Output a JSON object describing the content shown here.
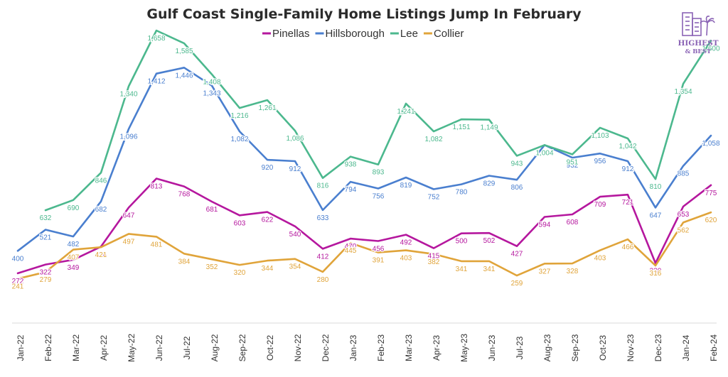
{
  "chart_data": {
    "type": "line",
    "title": "Gulf Coast Single-Family Home Listings Jump In February",
    "xlabel": "",
    "ylabel": "",
    "ylim": [
      0,
      1800
    ],
    "grid": false,
    "legend": "top-center",
    "categories": [
      "Jan-22",
      "Feb-22",
      "Mar-22",
      "Apr-22",
      "May-22",
      "Jun-22",
      "Jul-22",
      "Aug-22",
      "Sep-22",
      "Oct-22",
      "Nov-22",
      "Dec-22",
      "Jan-23",
      "Feb-23",
      "Mar-23",
      "Apr-23",
      "May-23",
      "Jun-23",
      "Jul-23",
      "Aug-23",
      "Sep-23",
      "Oct-23",
      "Nov-23",
      "Dec-23",
      "Jan-24",
      "Feb-24"
    ],
    "series": [
      {
        "name": "Pinellas",
        "color": "#b5179e",
        "values": [
          272,
          322,
          349,
          424,
          647,
          813,
          768,
          681,
          603,
          622,
          540,
          412,
          470,
          456,
          492,
          415,
          500,
          502,
          427,
          594,
          608,
          709,
          721,
          330,
          653,
          775
        ],
        "labels": [
          "272",
          "322",
          "349",
          "424",
          "647",
          "813",
          "768",
          "681",
          "603",
          "622",
          "540",
          "412",
          "470",
          "456",
          "492",
          "415",
          "500",
          "502",
          "427",
          "594",
          "608",
          "709",
          "721",
          "330",
          "653",
          "775"
        ]
      },
      {
        "name": "Hillsborough",
        "color": "#4a7fcf",
        "values": [
          400,
          521,
          482,
          682,
          1096,
          1412,
          1446,
          1343,
          1082,
          920,
          912,
          633,
          794,
          756,
          819,
          752,
          780,
          829,
          806,
          1004,
          932,
          956,
          912,
          647,
          885,
          1058
        ],
        "labels": [
          "400",
          "521",
          "482",
          "682",
          "1,096",
          "1,412",
          "1,446",
          "1,343",
          "1,082",
          "920",
          "912",
          "633",
          "794",
          "756",
          "819",
          "752",
          "780",
          "829",
          "806",
          "1,004",
          "932",
          "956",
          "912",
          "647",
          "885",
          "1,058"
        ]
      },
      {
        "name": "Lee",
        "color": "#4cb88e",
        "values": [
          null,
          632,
          690,
          846,
          1340,
          1658,
          1585,
          1408,
          1216,
          1261,
          1086,
          816,
          938,
          893,
          1241,
          1082,
          1151,
          1149,
          943,
          1004,
          951,
          1103,
          1042,
          810,
          1354,
          1600
        ],
        "labels": [
          "",
          "632",
          "690",
          "846",
          "1,340",
          "1,658",
          "1,585",
          "1,408",
          "1,216",
          "1,261",
          "1,086",
          "816",
          "938",
          "893",
          "1,241",
          "1,082",
          "1,151",
          "1,149",
          "943",
          "1,004",
          "951",
          "1,103",
          "1,042",
          "810",
          "1,354",
          "1,600"
        ]
      },
      {
        "name": "Collier",
        "color": "#e0a43a",
        "values": [
          241,
          279,
          407,
          421,
          497,
          481,
          384,
          352,
          320,
          344,
          354,
          280,
          445,
          391,
          403,
          382,
          341,
          341,
          259,
          327,
          328,
          403,
          466,
          316,
          562,
          620
        ],
        "labels": [
          "241",
          "279",
          "407",
          "421",
          "497",
          "481",
          "384",
          "352",
          "320",
          "344",
          "354",
          "280",
          "445",
          "391",
          "403",
          "382",
          "341",
          "341",
          "259",
          "327",
          "328",
          "403",
          "466",
          "316",
          "562",
          "620"
        ]
      }
    ]
  },
  "logo": {
    "line1": "HIGHEST",
    "line2": "& BEST",
    "color": "#8a63b5"
  }
}
